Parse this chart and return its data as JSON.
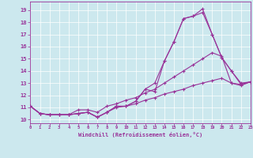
{
  "xlabel": "Windchill (Refroidissement éolien,°C)",
  "bg_color": "#cce8ee",
  "line_color": "#993399",
  "grid_color": "#aacccc",
  "xlim": [
    0,
    23
  ],
  "ylim": [
    9.7,
    19.7
  ],
  "yticks": [
    10,
    11,
    12,
    13,
    14,
    15,
    16,
    17,
    18,
    19
  ],
  "xticks": [
    0,
    1,
    2,
    3,
    4,
    5,
    6,
    7,
    8,
    9,
    10,
    11,
    12,
    13,
    14,
    15,
    16,
    17,
    18,
    19,
    20,
    21,
    22,
    23
  ],
  "series": [
    [
      11.1,
      10.5,
      10.4,
      10.4,
      10.4,
      10.5,
      10.6,
      10.2,
      10.6,
      11.1,
      11.1,
      11.5,
      12.5,
      13.0,
      14.8,
      16.4,
      18.3,
      18.5,
      19.1,
      17.0,
      15.1,
      14.0,
      13.0,
      13.1
    ],
    [
      11.1,
      10.5,
      10.4,
      10.4,
      10.4,
      10.5,
      10.6,
      10.2,
      10.6,
      11.1,
      11.1,
      11.5,
      12.5,
      12.3,
      14.8,
      16.4,
      18.3,
      18.5,
      18.8,
      17.0,
      15.1,
      14.0,
      12.9,
      13.1
    ],
    [
      11.1,
      10.5,
      10.4,
      10.4,
      10.4,
      10.8,
      10.8,
      10.6,
      11.1,
      11.3,
      11.6,
      11.8,
      12.2,
      12.5,
      13.0,
      13.5,
      14.0,
      14.5,
      15.0,
      15.5,
      15.2,
      13.0,
      12.8,
      13.1
    ],
    [
      11.1,
      10.5,
      10.4,
      10.4,
      10.4,
      10.5,
      10.6,
      10.2,
      10.6,
      11.0,
      11.1,
      11.3,
      11.6,
      11.8,
      12.1,
      12.3,
      12.5,
      12.8,
      13.0,
      13.2,
      13.4,
      13.0,
      12.9,
      13.1
    ]
  ]
}
